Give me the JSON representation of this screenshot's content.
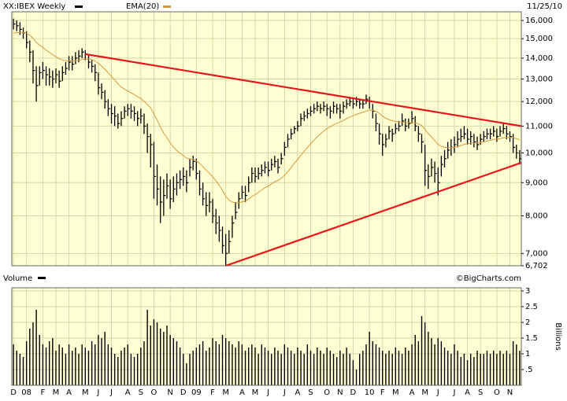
{
  "chart_data": [
    {
      "type": "ohlc",
      "date": "11/25/10",
      "log_scale": true,
      "grid": true,
      "background": "#ffffd4",
      "grid_color": "#d6d6a8",
      "ylim": [
        6702,
        16500
      ],
      "yticks": [
        {
          "value": 6702,
          "label": "6,702"
        },
        {
          "value": 7000,
          "label": "7,000"
        },
        {
          "value": 8000,
          "label": "8,000"
        },
        {
          "value": 9000,
          "label": "9,000"
        },
        {
          "value": 10000,
          "label": "10,000"
        },
        {
          "value": 11000,
          "label": "11,000"
        },
        {
          "value": 12000,
          "label": "12,000"
        },
        {
          "value": 13000,
          "label": "13,000"
        },
        {
          "value": 14000,
          "label": "14,000"
        },
        {
          "value": 15000,
          "label": "15,000"
        },
        {
          "value": 16000,
          "label": "16,000"
        }
      ],
      "categories": [
        "D",
        null,
        null,
        null,
        "08",
        null,
        null,
        null,
        null,
        "F",
        null,
        null,
        null,
        "M",
        null,
        null,
        null,
        "A",
        null,
        null,
        null,
        null,
        "M",
        null,
        null,
        null,
        "J",
        null,
        null,
        null,
        "J",
        null,
        null,
        null,
        null,
        "A",
        null,
        null,
        null,
        "S",
        null,
        null,
        null,
        "O",
        null,
        null,
        null,
        null,
        "N",
        null,
        null,
        null,
        "D",
        null,
        null,
        null,
        "09",
        null,
        null,
        null,
        null,
        "F",
        null,
        null,
        null,
        "M",
        null,
        null,
        null,
        null,
        "A",
        null,
        null,
        null,
        "M",
        null,
        null,
        null,
        "J",
        null,
        null,
        null,
        null,
        "J",
        null,
        null,
        null,
        "A",
        null,
        null,
        null,
        "S",
        null,
        null,
        null,
        null,
        "O",
        null,
        null,
        null,
        "N",
        null,
        null,
        null,
        "D",
        null,
        null,
        null,
        null,
        "10",
        null,
        null,
        null,
        "F",
        null,
        null,
        null,
        "M",
        null,
        null,
        null,
        null,
        "A",
        null,
        null,
        null,
        "M",
        null,
        null,
        null,
        "J",
        null,
        null,
        null,
        null,
        "J",
        null,
        null,
        null,
        "A",
        null,
        null,
        null,
        "S",
        null,
        null,
        null,
        null,
        "O",
        null,
        null,
        null,
        "N",
        null,
        null,
        null
      ],
      "series": [
        {
          "name": "XX:IBEX Weekly",
          "color": "#000000",
          "high": [
            16100,
            16000,
            15900,
            15600,
            15400,
            14900,
            14400,
            13600,
            13600,
            13800,
            13600,
            13500,
            13400,
            13500,
            13400,
            13600,
            13800,
            14100,
            14100,
            14300,
            14400,
            14500,
            14400,
            14200,
            13900,
            13700,
            13300,
            12800,
            12500,
            12100,
            11900,
            11800,
            11500,
            11600,
            11800,
            11900,
            11900,
            11800,
            11600,
            11700,
            11500,
            11100,
            10700,
            10400,
            9600,
            9200,
            9100,
            9300,
            9100,
            9200,
            9300,
            9400,
            9500,
            9400,
            9800,
            9900,
            9800,
            9400,
            9000,
            8700,
            8700,
            8500,
            8200,
            8000,
            7700,
            7500,
            7600,
            8000,
            8400,
            8700,
            8900,
            8900,
            9200,
            9500,
            9500,
            9500,
            9600,
            9700,
            9700,
            9800,
            9900,
            9800,
            10000,
            10400,
            10700,
            10900,
            11000,
            11200,
            11500,
            11600,
            11700,
            11800,
            11900,
            12000,
            11900,
            12000,
            11900,
            11800,
            12000,
            11900,
            11900,
            12000,
            12100,
            12200,
            12100,
            12200,
            12100,
            12100,
            12300,
            12200,
            11900,
            11500,
            11100,
            10700,
            10700,
            11000,
            10900,
            11100,
            11200,
            11500,
            11300,
            11300,
            11600,
            11400,
            11000,
            10700,
            10300,
            9600,
            9800,
            9700,
            9500,
            9900,
            10100,
            10400,
            10500,
            10600,
            10800,
            10900,
            11000,
            10900,
            10800,
            10700,
            10600,
            10700,
            10800,
            10900,
            10900,
            11000,
            10900,
            11000,
            11100,
            11000,
            10800,
            10700,
            10300,
            10100
          ],
          "low": [
            15500,
            15400,
            15200,
            15000,
            14500,
            13800,
            12800,
            12000,
            12700,
            13000,
            12700,
            12700,
            12600,
            12800,
            12600,
            12900,
            13200,
            13400,
            13400,
            13700,
            13800,
            14000,
            13900,
            13500,
            13300,
            12900,
            12300,
            12100,
            11700,
            11400,
            11100,
            11000,
            10900,
            11000,
            11300,
            11400,
            11300,
            11200,
            11000,
            11100,
            10700,
            10000,
            9500,
            8500,
            8300,
            7800,
            8000,
            8500,
            8200,
            8400,
            8600,
            8800,
            8900,
            8700,
            9200,
            9400,
            9100,
            8600,
            8300,
            8000,
            8100,
            7800,
            7500,
            7300,
            7000,
            6702,
            7000,
            7400,
            7900,
            8200,
            8500,
            8400,
            8700,
            9000,
            9000,
            9100,
            9200,
            9300,
            9200,
            9400,
            9500,
            9300,
            9600,
            9900,
            10200,
            10500,
            10700,
            10800,
            11000,
            11200,
            11300,
            11400,
            11500,
            11600,
            11500,
            11600,
            11400,
            11300,
            11500,
            11500,
            11300,
            11500,
            11700,
            11800,
            11700,
            11800,
            11700,
            11700,
            11900,
            11700,
            11300,
            10800,
            10300,
            9900,
            10200,
            10500,
            10400,
            10700,
            10800,
            11000,
            10800,
            10900,
            11100,
            10800,
            10400,
            10000,
            8900,
            8800,
            9200,
            9000,
            8600,
            9200,
            9500,
            9800,
            9900,
            10000,
            10200,
            10400,
            10500,
            10300,
            10300,
            10200,
            10100,
            10300,
            10400,
            10500,
            10500,
            10600,
            10400,
            10600,
            10700,
            10500,
            10400,
            10000,
            9800,
            9600
          ],
          "close": [
            15800,
            15700,
            15500,
            15300,
            14800,
            14300,
            13400,
            12700,
            13300,
            13400,
            13200,
            13100,
            13000,
            13200,
            12900,
            13300,
            13500,
            13800,
            13700,
            14000,
            14100,
            14300,
            14200,
            13800,
            13600,
            13300,
            12600,
            12400,
            12000,
            11700,
            11500,
            11400,
            11100,
            11300,
            11600,
            11700,
            11600,
            11500,
            11300,
            11400,
            11000,
            10600,
            10300,
            9200,
            8800,
            8400,
            8600,
            8900,
            8500,
            8800,
            9000,
            9100,
            9200,
            9000,
            9500,
            9700,
            9300,
            8800,
            8500,
            8300,
            8400,
            8000,
            7800,
            7600,
            7200,
            7000,
            7300,
            7800,
            8100,
            8500,
            8700,
            8600,
            9000,
            9300,
            9200,
            9300,
            9400,
            9500,
            9400,
            9600,
            9700,
            9500,
            9800,
            10200,
            10500,
            10700,
            10900,
            11000,
            11300,
            11400,
            11500,
            11600,
            11700,
            11800,
            11700,
            11800,
            11700,
            11600,
            11800,
            11700,
            11600,
            11800,
            11900,
            12000,
            11900,
            12000,
            11900,
            11900,
            12100,
            12000,
            11600,
            11100,
            10700,
            10300,
            10500,
            10800,
            10700,
            10900,
            11000,
            11200,
            11000,
            11100,
            11300,
            11000,
            10700,
            10400,
            9400,
            9200,
            9500,
            9300,
            9000,
            9600,
            9800,
            10100,
            10200,
            10300,
            10500,
            10600,
            10700,
            10500,
            10600,
            10400,
            10300,
            10500,
            10600,
            10700,
            10700,
            10800,
            10600,
            10800,
            10900,
            10700,
            10600,
            10200,
            10000,
            9800
          ]
        },
        {
          "name": "EMA(20)",
          "color": "#d39a3c",
          "values": [
            15300,
            15320,
            15330,
            15330,
            15280,
            15190,
            15020,
            14800,
            14660,
            14540,
            14410,
            14290,
            14170,
            14080,
            13970,
            13910,
            13870,
            13870,
            13860,
            13870,
            13890,
            13930,
            13960,
            13950,
            13920,
            13860,
            13740,
            13610,
            13460,
            13290,
            13120,
            12960,
            12780,
            12640,
            12540,
            12460,
            12380,
            12300,
            12210,
            12130,
            12010,
            11880,
            11730,
            11490,
            11230,
            10960,
            10730,
            10560,
            10360,
            10210,
            10090,
            9990,
            9910,
            9820,
            9790,
            9780,
            9730,
            9640,
            9530,
            9410,
            9310,
            9190,
            9060,
            8920,
            8750,
            8580,
            8460,
            8400,
            8370,
            8380,
            8410,
            8430,
            8490,
            8570,
            8630,
            8700,
            8770,
            8840,
            8890,
            8960,
            9030,
            9070,
            9140,
            9240,
            9360,
            9490,
            9640,
            9770,
            9920,
            10060,
            10200,
            10330,
            10460,
            10590,
            10700,
            10810,
            10900,
            10970,
            11050,
            11110,
            11160,
            11220,
            11290,
            11360,
            11410,
            11470,
            11510,
            11550,
            11600,
            11640,
            11640,
            11590,
            11510,
            11400,
            11310,
            11260,
            11210,
            11180,
            11160,
            11160,
            11140,
            11130,
            11140,
            11130,
            11090,
            11030,
            10870,
            10710,
            10590,
            10450,
            10310,
            10240,
            10200,
            10190,
            10190,
            10200,
            10230,
            10270,
            10310,
            10330,
            10360,
            10360,
            10360,
            10380,
            10400,
            10430,
            10460,
            10490,
            10500,
            10520,
            10550,
            10570,
            10570,
            10550,
            10520,
            10480
          ]
        }
      ],
      "trendlines": [
        {
          "color": "#e8141a",
          "start": 22,
          "end": 156,
          "values": [
            14200,
            11000
          ]
        },
        {
          "color": "#e8141a",
          "start": 65,
          "end": 156,
          "values": [
            6702,
            9660
          ]
        }
      ]
    },
    {
      "type": "bar",
      "title": "Volume",
      "credit": "©BigCharts.com",
      "y_label": "Billions",
      "color": "#000000",
      "grid": true,
      "background": "#ffffd4",
      "grid_color": "#d6d6a8",
      "ylim": [
        0,
        3.1
      ],
      "yticks": [
        {
          "value": 0.5,
          "label": ".5"
        },
        1,
        1.5,
        2,
        2.5,
        3
      ],
      "values": [
        1.3,
        1.1,
        1.0,
        0.9,
        1.4,
        1.8,
        2.0,
        2.4,
        1.6,
        1.3,
        1.2,
        1.4,
        1.5,
        1.1,
        1.3,
        1.2,
        1.0,
        1.3,
        1.1,
        1.2,
        1.0,
        1.3,
        1.2,
        1.1,
        1.4,
        1.3,
        1.6,
        1.5,
        1.7,
        1.3,
        1.2,
        1.0,
        0.9,
        1.1,
        1.2,
        1.3,
        1.0,
        0.9,
        1.0,
        1.2,
        1.4,
        2.4,
        1.9,
        2.1,
        2.0,
        1.8,
        1.7,
        1.9,
        1.6,
        1.5,
        1.4,
        1.2,
        1.0,
        0.7,
        1.0,
        1.1,
        1.2,
        1.3,
        1.4,
        1.1,
        1.2,
        1.5,
        1.4,
        1.3,
        1.6,
        1.5,
        1.4,
        1.3,
        1.2,
        1.4,
        1.3,
        1.1,
        1.2,
        1.3,
        1.2,
        1.0,
        1.3,
        1.2,
        1.1,
        1.0,
        1.2,
        1.1,
        1.0,
        1.3,
        1.2,
        1.1,
        1.0,
        1.2,
        1.1,
        1.0,
        1.3,
        1.1,
        1.0,
        1.2,
        1.1,
        1.0,
        1.2,
        1.1,
        1.0,
        0.9,
        1.1,
        1.0,
        1.2,
        1.0,
        0.8,
        0.5,
        1.0,
        1.1,
        1.3,
        1.7,
        1.4,
        1.3,
        1.2,
        1.1,
        1.0,
        1.1,
        1.0,
        1.2,
        1.1,
        1.0,
        1.2,
        1.1,
        1.3,
        1.6,
        1.4,
        2.2,
        2.0,
        1.7,
        1.5,
        1.3,
        1.5,
        1.4,
        1.2,
        1.1,
        1.0,
        1.3,
        1.1,
        0.9,
        1.0,
        0.8,
        1.0,
        0.9,
        1.1,
        1.0,
        1.0,
        1.1,
        1.0,
        1.1,
        1.0,
        1.1,
        1.0,
        1.1,
        1.0,
        1.4,
        1.3,
        1.1
      ]
    }
  ]
}
